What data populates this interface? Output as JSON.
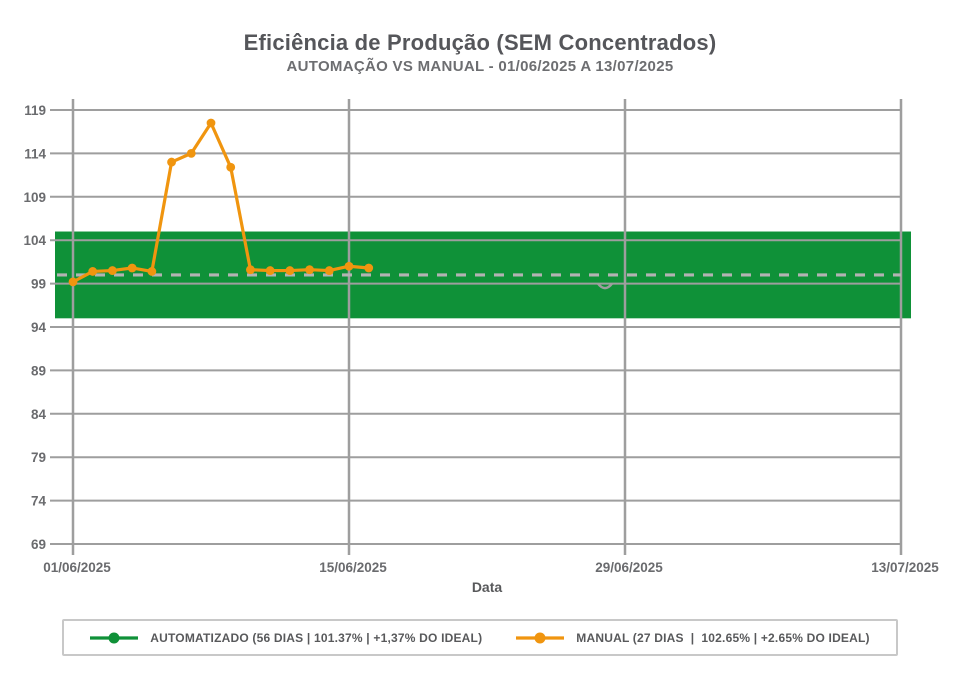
{
  "header": {
    "title": "Eficiência de Produção (SEM Concentrados)",
    "subtitle": "AUTOMAÇÃO VS MANUAL - 01/06/2025 A 13/07/2025"
  },
  "colors": {
    "green": "#0f9138",
    "orange": "#f0950f",
    "grid": "#9e9e9e",
    "dashed_line": "#b3b3b3",
    "title_text": "#55565a",
    "tick_text": "#6a6b6e",
    "axis_label_text": "#58595b",
    "legend_border": "#c8c8c8"
  },
  "chart_data": {
    "type": "line",
    "title": "Eficiência de Produção (SEM Concentrados)",
    "subtitle": "AUTOMAÇÃO VS MANUAL - 01/06/2025 A 13/07/2025",
    "xlabel": "Data",
    "ylabel": "",
    "ylim": [
      69,
      119
    ],
    "y_ticks": [
      119,
      114,
      109,
      104,
      99,
      94,
      89,
      84,
      79,
      74,
      69
    ],
    "x_ticks": [
      {
        "day": 0,
        "label": "01/06/2025"
      },
      {
        "day": 14,
        "label": "15/06/2025"
      },
      {
        "day": 28,
        "label": "29/06/2025"
      },
      {
        "day": 42,
        "label": "13/07/2025"
      }
    ],
    "x_domain_days": [
      0,
      42
    ],
    "grid": true,
    "legend_position": "bottom",
    "ideal_band": {
      "min": 95,
      "max": 105,
      "color": "#0f9138"
    },
    "ideal_line": {
      "value": 100,
      "style": "dashed",
      "color": "#b3b3b3"
    },
    "series": [
      {
        "name": "AUTOMATIZADO (56 DIAS | 101.37% | +1,37% DO IDEAL)",
        "color": "#0f9138",
        "render": "band",
        "days": 56,
        "average_pct": "101.37%",
        "vs_ideal_pct": "+1,37%"
      },
      {
        "name": "MANUAL (27 DIAS  |  102.65% | +2.65% DO IDEAL)",
        "color": "#f0950f",
        "render": "line-markers",
        "days": 27,
        "average_pct": "102.65%",
        "vs_ideal_pct": "+2.65%",
        "x_days": [
          0,
          1,
          2,
          3,
          4,
          5,
          6,
          7,
          8,
          9,
          10,
          11,
          12,
          13,
          14,
          15
        ],
        "dates": [
          "01/06/2025",
          "02/06/2025",
          "03/06/2025",
          "04/06/2025",
          "05/06/2025",
          "06/06/2025",
          "07/06/2025",
          "08/06/2025",
          "09/06/2025",
          "10/06/2025",
          "11/06/2025",
          "12/06/2025",
          "13/06/2025",
          "14/06/2025",
          "15/06/2025",
          "16/06/2025"
        ],
        "values": [
          99.2,
          100.4,
          100.5,
          100.8,
          100.4,
          113.0,
          114.0,
          117.5,
          112.4,
          100.6,
          100.5,
          100.5,
          100.6,
          100.5,
          101.0,
          100.8
        ]
      }
    ]
  },
  "legend": {
    "items": [
      {
        "label": "AUTOMATIZADO (56 DIAS | 101.37% | +1,37% DO IDEAL)",
        "color": "#0f9138",
        "marker": "circle-on-line"
      },
      {
        "label": "MANUAL (27 DIAS  |  102.65% | +2.65% DO IDEAL)",
        "color": "#f0950f",
        "marker": "circle-on-line"
      }
    ]
  }
}
